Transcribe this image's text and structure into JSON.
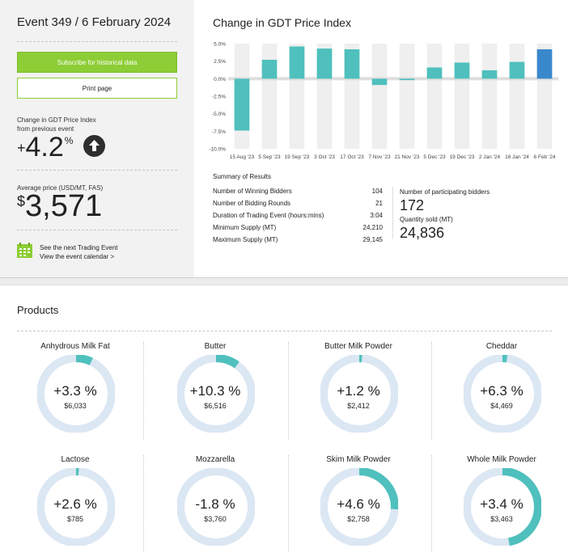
{
  "event": {
    "title": "Event 349 / 6 February 2024",
    "subscribe_label": "Subscribe for historical data",
    "print_label": "Print page",
    "change_label_1": "Change in GDT Price Index",
    "change_label_2": "from previous event",
    "change_sign": "+",
    "change_value": "4.2",
    "change_unit": "%",
    "change_direction_icon": "arrow-up-circle-icon",
    "avg_price_label": "Average price (USD/MT, FAS)",
    "avg_price_currency": "$",
    "avg_price_value": "3,571",
    "next_event_title": "See the next Trading Event",
    "next_event_link": "View the event calendar >"
  },
  "chart_data": {
    "type": "bar",
    "title": "Change in GDT Price Index",
    "categories": [
      "15 Aug '23",
      "5 Sep '23",
      "19 Sep '23",
      "3 Oct '23",
      "17 Oct '23",
      "7 Nov '23",
      "21 Nov '23",
      "5 Dec '23",
      "19 Dec '23",
      "2 Jan '24",
      "16 Jan '24",
      "6 Feb '24"
    ],
    "values": [
      -7.4,
      2.7,
      4.6,
      4.3,
      4.2,
      -0.9,
      -0.2,
      1.6,
      2.3,
      1.2,
      2.4,
      4.2
    ],
    "ylim": [
      -10,
      5
    ],
    "yticks": [
      "5.0%",
      "2.5%",
      "0.0%",
      "-2.5%",
      "-5.0%",
      "-7.5%",
      "-10.0%"
    ],
    "ytick_values": [
      5,
      2.5,
      0,
      -2.5,
      -5,
      -7.5,
      -10
    ],
    "colors": {
      "bar": "#4fc0bd",
      "highlight": "#3a88cc",
      "column_bg": "#efefef"
    },
    "grid": false
  },
  "summary": {
    "title": "Summary of Results",
    "rows": [
      {
        "label": "Number of Winning Bidders",
        "value": "104"
      },
      {
        "label": "Number of Bidding Rounds",
        "value": "21"
      },
      {
        "label": "Duration of Trading Event (hours:mins)",
        "value": "3:04"
      },
      {
        "label": "Minimum Supply (MT)",
        "value": "24,210"
      },
      {
        "label": "Maximum Supply (MT)",
        "value": "29,145"
      }
    ],
    "participants_label": "Number of participating bidders",
    "participants_value": "172",
    "quantity_label": "Quantity sold (MT)",
    "quantity_value": "24,836"
  },
  "products": {
    "title": "Products",
    "ring_colors": {
      "track": "#dbe7f3",
      "fill": "#4fc0bd"
    },
    "items": [
      {
        "name": "Anhydrous Milk Fat",
        "change": "+3.3 %",
        "price": "$6,033",
        "fill": 0.07
      },
      {
        "name": "Butter",
        "change": "+10.3 %",
        "price": "$6,516",
        "fill": 0.1
      },
      {
        "name": "Butter Milk Powder",
        "change": "+1.2 %",
        "price": "$2,412",
        "fill": 0.012
      },
      {
        "name": "Cheddar",
        "change": "+6.3 %",
        "price": "$4,469",
        "fill": 0.02
      },
      {
        "name": "Lactose",
        "change": "+2.6 %",
        "price": "$785",
        "fill": 0.012
      },
      {
        "name": "Mozzarella",
        "change": "-1.8 %",
        "price": "$3,760",
        "fill": 0.0
      },
      {
        "name": "Skim Milk Powder",
        "change": "+4.6 %",
        "price": "$2,758",
        "fill": 0.26
      },
      {
        "name": "Whole Milk Powder",
        "change": "+3.4 %",
        "price": "$3,463",
        "fill": 0.47
      }
    ]
  }
}
